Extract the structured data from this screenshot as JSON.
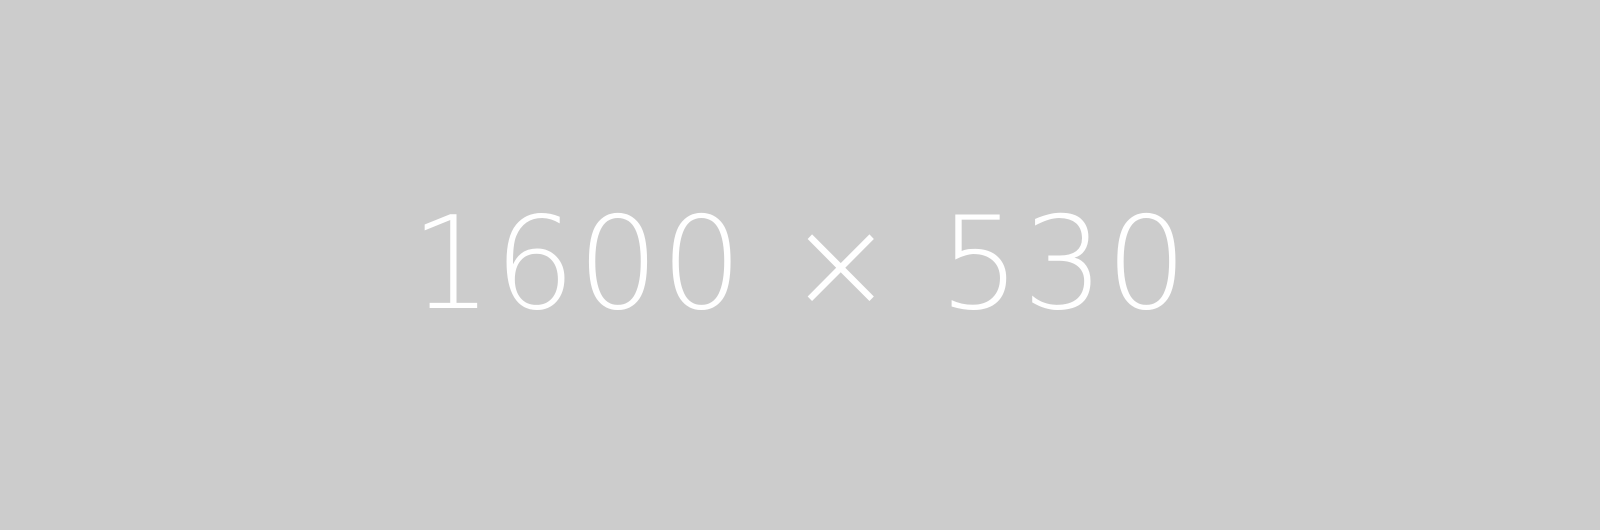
{
  "placeholder": {
    "text": "1600 × 530",
    "background_color": "#cccccc",
    "text_color": "#ffffff"
  }
}
